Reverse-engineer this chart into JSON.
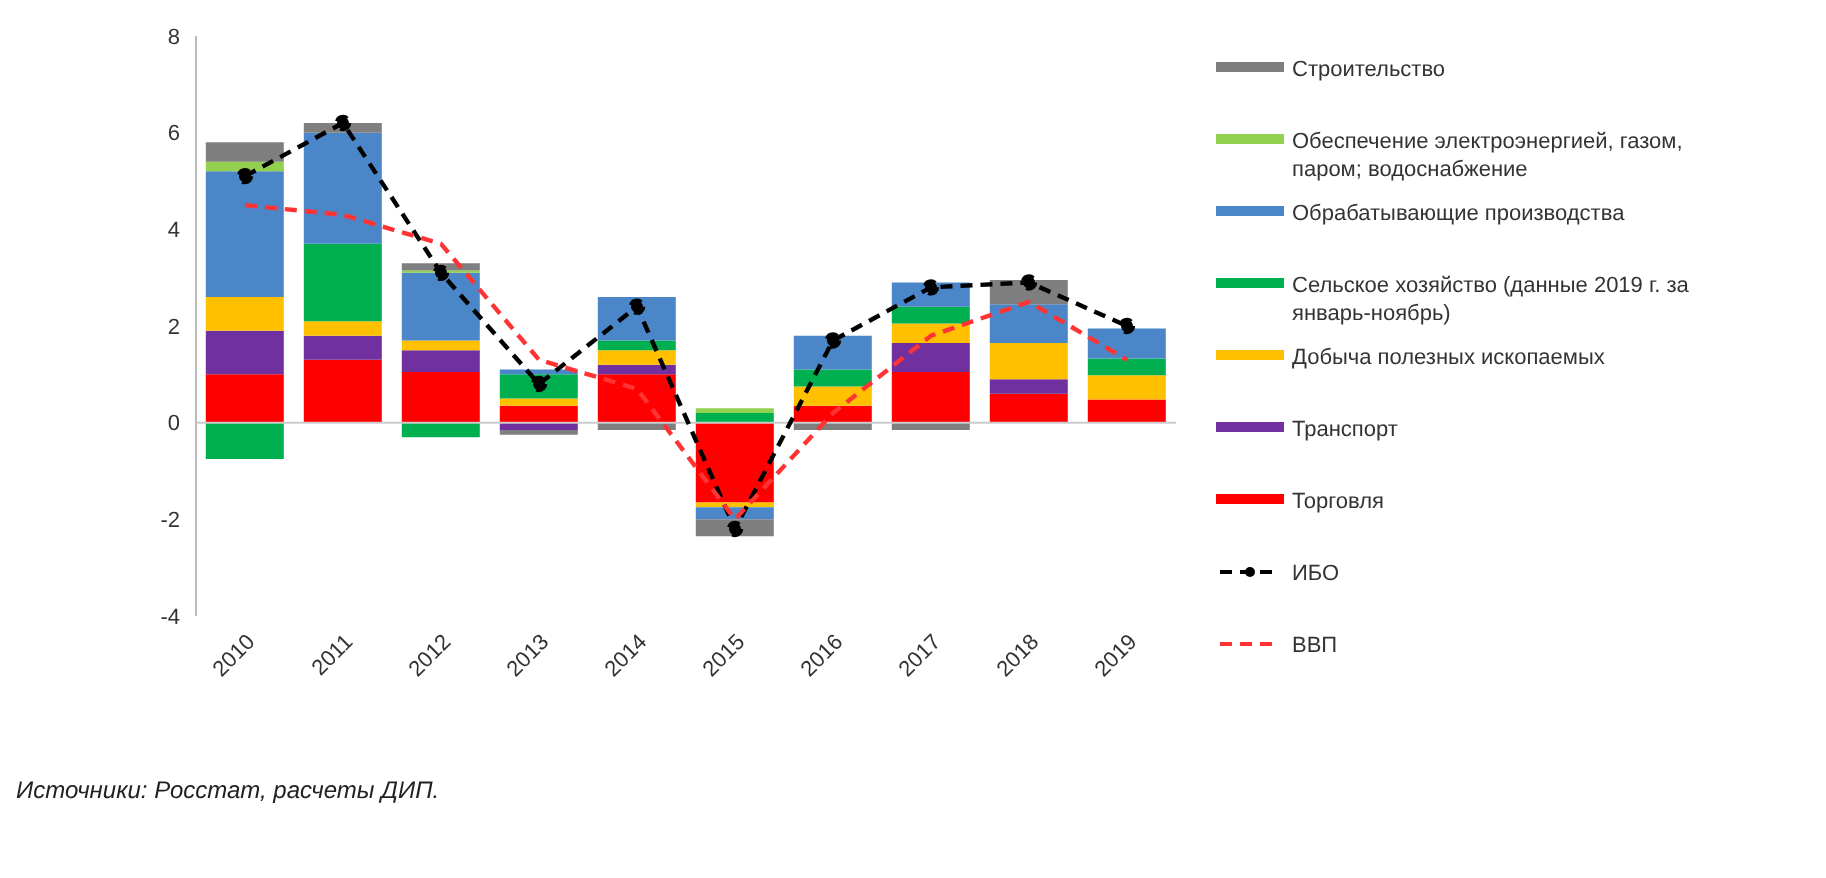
{
  "chart_data": {
    "type": "bar",
    "stacked": true,
    "categories": [
      "2010",
      "2011",
      "2012",
      "2013",
      "2014",
      "2015",
      "2016",
      "2017",
      "2018",
      "2019"
    ],
    "ylim": [
      -4,
      8
    ],
    "yticks": [
      -4,
      -2,
      0,
      2,
      4,
      6,
      8
    ],
    "grid": false,
    "legend": "right",
    "ref_lines": [
      {
        "axis": "y",
        "value": 0,
        "color": "#cccccc"
      }
    ],
    "series": [
      {
        "name": "Торговля",
        "color": "#ff0000",
        "values": [
          1.0,
          1.3,
          1.05,
          0.35,
          1.0,
          -1.65,
          0.35,
          1.05,
          0.6,
          0.48
        ]
      },
      {
        "name": "Транспорт",
        "color": "#7030a0",
        "values": [
          0.9,
          0.5,
          0.45,
          -0.15,
          0.2,
          null,
          null,
          0.6,
          0.3,
          null
        ]
      },
      {
        "name": "Добыча полезных ископаемых",
        "color": "#ffc000",
        "values": [
          0.7,
          0.3,
          0.2,
          0.15,
          0.3,
          -0.1,
          0.4,
          0.4,
          0.75,
          0.5
        ]
      },
      {
        "name": "Сельское хозяйство (данные 2019 г. за январь-ноябрь)",
        "color": "#00b050",
        "values": [
          -0.75,
          1.6,
          -0.3,
          0.5,
          0.2,
          0.2,
          0.35,
          0.35,
          null,
          0.35
        ]
      },
      {
        "name": "Обрабатывающие производства",
        "color": "#4a86c8",
        "values": [
          2.6,
          2.3,
          1.4,
          0.1,
          0.9,
          -0.25,
          0.7,
          0.5,
          0.8,
          0.62
        ]
      },
      {
        "name": "Обеспечение электроэнергией, газом, паром; водоснабжение",
        "color": "#92d050",
        "values": [
          0.2,
          null,
          0.05,
          null,
          null,
          0.1,
          null,
          null,
          null,
          null
        ]
      },
      {
        "name": "Строительство",
        "color": "#7f7f7f",
        "values": [
          0.4,
          0.2,
          0.15,
          -0.1,
          -0.15,
          -0.35,
          -0.15,
          -0.15,
          0.5,
          null
        ]
      },
      {
        "name": "ИБО",
        "type": "line",
        "color": "#000000",
        "line_style": "dashed",
        "marker": "circle",
        "values": [
          5.1,
          6.2,
          3.1,
          0.8,
          2.4,
          -2.2,
          1.7,
          2.8,
          2.9,
          2.0
        ]
      },
      {
        "name": "ВВП",
        "type": "line",
        "color": "#ff3333",
        "line_style": "dashed",
        "values": [
          4.5,
          4.3,
          3.7,
          1.3,
          0.7,
          -2.0,
          0.2,
          1.8,
          2.5,
          1.3
        ]
      }
    ],
    "annotations": [
      "Источники: Росстат, расчеты ДИП."
    ]
  }
}
